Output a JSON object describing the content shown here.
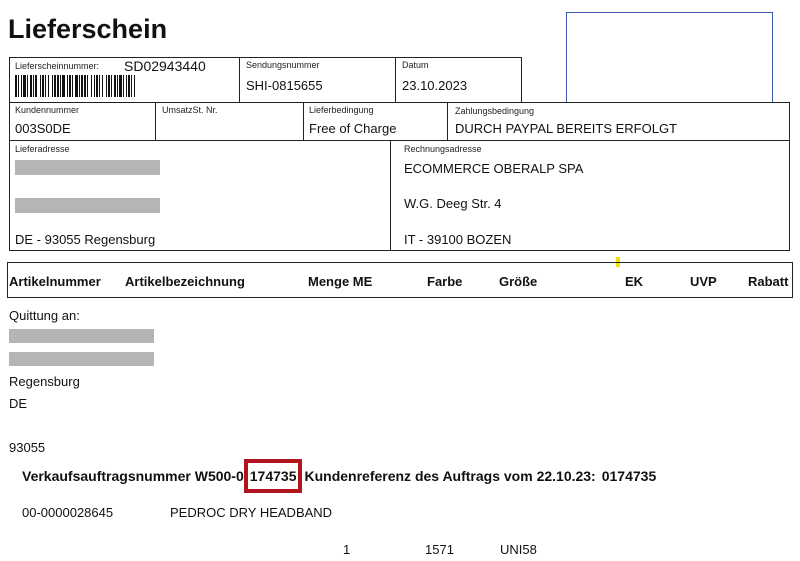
{
  "title": "Lieferschein",
  "header": {
    "lieferscheinnummer_label": "Lieferscheinnummer:",
    "lieferscheinnummer": "SD02943440",
    "sendungsnummer_label": "Sendungsnummer",
    "sendungsnummer": "SHI-0815655",
    "datum_label": "Datum",
    "datum": "23.10.2023",
    "kundennummer_label": "Kundennummer",
    "kundennummer": "003S0DE",
    "ust_label": "UmsatzSt. Nr.",
    "lieferbedingung_label": "Lieferbedingung",
    "lieferbedingung": "Free of Charge",
    "zahlungsbedingung_label": "Zahlungsbedingung",
    "zahlungsbedingung": "DURCH PAYPAL BEREITS ERFOLGT"
  },
  "lieferadresse": {
    "label": "Lieferadresse",
    "city": "DE - 93055 Regensburg"
  },
  "rechnungsadresse": {
    "label": "Rechnungsadresse",
    "name": "ECOMMERCE OBERALP SPA",
    "street": "W.G. Deeg Str. 4",
    "city": "IT - 39100 BOZEN"
  },
  "columns": [
    "Artikelnummer",
    "Artikelbezeichnung",
    "Menge ME",
    "Farbe",
    "Größe",
    "EK",
    "UVP",
    "Rabatt"
  ],
  "quittung": {
    "label": "Quittung an:",
    "city": "Regensburg",
    "country": "DE",
    "zip": "93055"
  },
  "order": {
    "prefix": "Verkaufsauftragsnummer W500-0",
    "number": "0174735",
    "highlight": "174735",
    "suffix": "Kundenreferenz des Auftrags vom 22.10.23:"
  },
  "item": {
    "artikelnummer": "00-0000028645",
    "bezeichnung": "PEDROC DRY HEADBAND",
    "menge": "1",
    "farbe": "1571",
    "groesse": "UNI58"
  },
  "colors": {
    "highlight_box": "#b0141c",
    "logo_box_border": "#3a5fb0",
    "marker": "#f2e000"
  }
}
